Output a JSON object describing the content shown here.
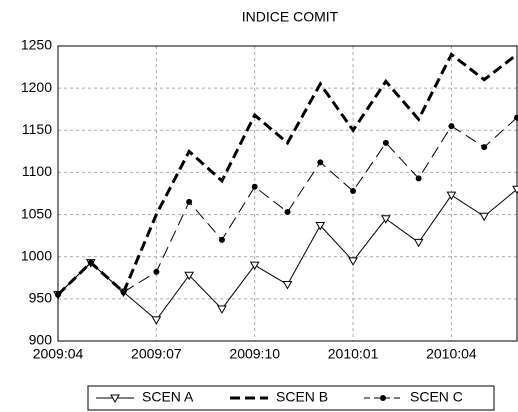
{
  "chart_data": {
    "type": "line",
    "title": "INDICE COMIT",
    "categories": [
      "2009:04",
      null,
      null,
      "2009:07",
      null,
      null,
      "2009:10",
      null,
      null,
      "2010:01",
      null,
      null,
      "2010:04",
      null,
      null
    ],
    "series": [
      {
        "name": "SCEN A",
        "color": "#000000",
        "dash": "solid",
        "width": 1,
        "marker": "triangle",
        "values": [
          955,
          993,
          958,
          925,
          978,
          938,
          990,
          967,
          1037,
          995,
          1045,
          1017,
          1073,
          1048,
          1080
        ]
      },
      {
        "name": "SCEN B",
        "color": "#000000",
        "dash": "dashed",
        "width": 3,
        "marker": "none",
        "values": [
          955,
          993,
          958,
          1050,
          1125,
          1090,
          1168,
          1135,
          1205,
          1150,
          1208,
          1163,
          1240,
          1210,
          1240
        ]
      },
      {
        "name": "SCEN C",
        "color": "#000000",
        "dash": "dashed",
        "width": 1,
        "marker": "circle",
        "values": [
          955,
          993,
          958,
          982,
          1065,
          1020,
          1083,
          1053,
          1112,
          1078,
          1135,
          1093,
          1155,
          1130,
          1165
        ]
      }
    ],
    "ylim": [
      900,
      1250
    ],
    "yticks": [
      900,
      950,
      1000,
      1050,
      1100,
      1150,
      1200,
      1250
    ],
    "grid": true,
    "legend": "bottom"
  }
}
